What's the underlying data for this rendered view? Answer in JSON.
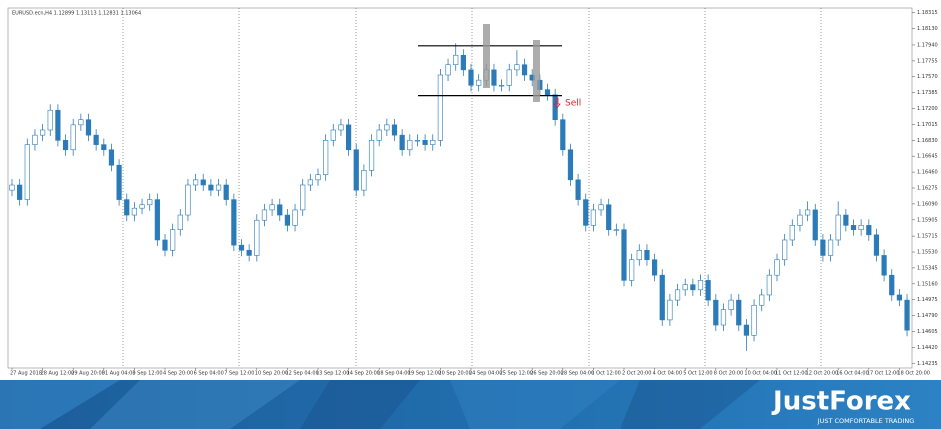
{
  "chart_data": {
    "type": "candlestick",
    "title": "EURUSD.ecn,H4  1.12899 1.13113 1.12831 1.13064",
    "annotation": "Sell",
    "brand": "JustForex",
    "tagline": "JUST COMFORTABLE TRADING",
    "up_color": "#ffffff",
    "down_color": "#2b7bb9",
    "wick_color": "#2b7bb9",
    "ylim": [
      1.1418,
      1.1837
    ],
    "yticks": [
      1.18315,
      {
        "value": 1.1813,
        "label": "1.18130"
      },
      {
        "value": 1.1794,
        "label": "1.17940"
      },
      1.17755,
      {
        "value": 1.1757,
        "label": "1.17570"
      },
      1.17385,
      {
        "value": 1.172,
        "label": "1.17200"
      },
      1.17015,
      {
        "value": 1.1683,
        "label": "1.16830"
      },
      1.16645,
      {
        "value": 1.1646,
        "label": "1.16460"
      },
      1.16275,
      {
        "value": 1.1609,
        "label": "1.16090"
      },
      1.15905,
      1.15715,
      {
        "value": 1.1553,
        "label": "1.15530"
      },
      1.15345,
      {
        "value": 1.1516,
        "label": "1.15160"
      },
      1.14975,
      {
        "value": 1.1479,
        "label": "1.14790"
      },
      1.14605,
      {
        "value": 1.1442,
        "label": "1.14420"
      },
      1.14235
    ],
    "levels": [
      1.1793,
      1.1735
    ],
    "categories": [
      "27 Aug 2018",
      null,
      null,
      null,
      "28 Aug 12:00",
      null,
      null,
      null,
      "29 Aug 20:00",
      null,
      null,
      null,
      "31 Aug 04:00",
      null,
      null,
      null,
      "3 Sep 12:00",
      null,
      null,
      null,
      "4 Sep 20:00",
      null,
      null,
      null,
      "6 Sep 04:00",
      null,
      null,
      null,
      "7 Sep 12:00",
      null,
      null,
      null,
      "10 Sep 20:00",
      null,
      null,
      null,
      "12 Sep 04:00",
      null,
      null,
      null,
      "13 Sep 12:00",
      null,
      null,
      null,
      "14 Sep 20:00",
      null,
      null,
      null,
      "18 Sep 04:00",
      null,
      null,
      null,
      "19 Sep 12:00",
      null,
      null,
      null,
      "20 Sep 20:00",
      null,
      null,
      null,
      "24 Sep 04:00",
      null,
      null,
      null,
      "25 Sep 12:00",
      null,
      null,
      null,
      "26 Sep 20:00",
      null,
      null,
      null,
      "28 Sep 04:00",
      null,
      null,
      null,
      "1 Oct 12:00",
      null,
      null,
      null,
      "2 Oct 20:00",
      null,
      null,
      null,
      "4 Oct 04:00",
      null,
      null,
      null,
      "5 Oct 12:00",
      null,
      null,
      null,
      "8 Oct 20:00",
      null,
      null,
      null,
      "10 Oct 04:00",
      null,
      null,
      null,
      "11 Oct 12:00",
      null,
      null,
      null,
      "12 Oct 20:00",
      null,
      null,
      null,
      "16 Oct 04:00",
      null,
      null,
      null,
      "17 Oct 12:00",
      null,
      null,
      null,
      "18 Oct 20:00",
      null
    ],
    "open": [
      1.1625,
      1.1631,
      1.1614,
      1.1678,
      1.1689,
      1.1695,
      1.1718,
      1.1683,
      1.1672,
      1.1701,
      1.1707,
      1.1689,
      1.1678,
      1.1672,
      1.1654,
      1.1614,
      1.1596,
      1.1604,
      1.1608,
      1.1614,
      1.1567,
      1.1555,
      1.1579,
      1.1596,
      1.1631,
      1.1637,
      1.1631,
      1.1625,
      1.1631,
      1.1614,
      1.1561,
      1.1555,
      1.1549,
      1.159,
      1.1602,
      1.1608,
      1.1596,
      1.1584,
      1.1602,
      1.1631,
      1.1637,
      1.1643,
      1.1683,
      1.1695,
      1.1701,
      1.1672,
      1.1625,
      1.1648,
      1.1683,
      1.1695,
      1.1701,
      1.1689,
      1.1672,
      1.1683,
      1.1683,
      1.1678,
      1.1683,
      1.1759,
      1.1771,
      1.1782,
      1.1765,
      1.1747,
      1.1753,
      1.1765,
      1.1747,
      1.1747,
      1.1765,
      1.1771,
      1.1759,
      1.1753,
      1.1742,
      1.1736,
      1.1707,
      1.1672,
      1.1637,
      1.1614,
      1.1584,
      1.1602,
      1.1608,
      1.1579,
      1.1579,
      1.152,
      1.1544,
      1.1555,
      1.1544,
      1.1526,
      1.1474,
      1.1497,
      1.1509,
      1.1515,
      1.1509,
      1.152,
      1.1497,
      1.1468,
      1.1486,
      1.1497,
      1.1468,
      1.1456,
      1.1491,
      1.1503,
      1.1526,
      1.1544,
      1.1567,
      1.1584,
      1.1596,
      1.1602,
      1.1567,
      1.1549,
      1.1567,
      1.1596,
      1.1584,
      1.1579,
      1.1584,
      1.1573,
      1.1549,
      1.1526,
      1.1503,
      1.1497
    ],
    "high": [
      1.1638,
      1.1638,
      1.1685,
      1.1696,
      1.1702,
      1.1725,
      1.1725,
      1.169,
      1.1708,
      1.1714,
      1.1714,
      1.1696,
      1.1685,
      1.1679,
      1.1661,
      1.1621,
      1.1611,
      1.1615,
      1.1621,
      1.1621,
      1.1574,
      1.1586,
      1.1603,
      1.1638,
      1.1644,
      1.1644,
      1.1638,
      1.1638,
      1.1638,
      1.1621,
      1.1568,
      1.1562,
      1.1597,
      1.1609,
      1.1615,
      1.1615,
      1.1603,
      1.1609,
      1.1638,
      1.1644,
      1.165,
      1.169,
      1.1702,
      1.1708,
      1.1708,
      1.1679,
      1.1655,
      1.169,
      1.1702,
      1.1708,
      1.1708,
      1.1696,
      1.169,
      1.169,
      1.169,
      1.169,
      1.1766,
      1.1778,
      1.1796,
      1.1789,
      1.1772,
      1.176,
      1.1772,
      1.1772,
      1.1754,
      1.1772,
      1.1788,
      1.1778,
      1.1766,
      1.176,
      1.1749,
      1.1743,
      1.1714,
      1.1679,
      1.1644,
      1.1621,
      1.1609,
      1.1615,
      1.1615,
      1.1586,
      1.1586,
      1.1551,
      1.1562,
      1.1562,
      1.1551,
      1.1533,
      1.1504,
      1.1516,
      1.1522,
      1.1522,
      1.1527,
      1.1527,
      1.1504,
      1.1493,
      1.1504,
      1.1504,
      1.1475,
      1.1498,
      1.151,
      1.1533,
      1.1551,
      1.1574,
      1.1591,
      1.1603,
      1.1612,
      1.1609,
      1.1574,
      1.1574,
      1.1612,
      1.1603,
      1.1591,
      1.1591,
      1.1591,
      1.158,
      1.1556,
      1.1533,
      1.151,
      1.1504
    ],
    "low": [
      1.1618,
      1.1607,
      1.1607,
      1.1671,
      1.1682,
      1.1688,
      1.1676,
      1.1665,
      1.1665,
      1.1694,
      1.1682,
      1.1671,
      1.1665,
      1.1647,
      1.1607,
      1.1589,
      1.1589,
      1.1597,
      1.1601,
      1.156,
      1.1548,
      1.1548,
      1.1572,
      1.1589,
      1.1624,
      1.1624,
      1.1618,
      1.1618,
      1.1607,
      1.1554,
      1.1548,
      1.1542,
      1.1542,
      1.1583,
      1.1595,
      1.1589,
      1.1577,
      1.1577,
      1.1595,
      1.1624,
      1.163,
      1.1636,
      1.1676,
      1.1688,
      1.1665,
      1.1618,
      1.1618,
      1.1641,
      1.1676,
      1.1688,
      1.1682,
      1.1665,
      1.1665,
      1.1676,
      1.1671,
      1.1671,
      1.1676,
      1.1752,
      1.1764,
      1.1758,
      1.174,
      1.174,
      1.1746,
      1.174,
      1.174,
      1.174,
      1.1758,
      1.1752,
      1.1746,
      1.1735,
      1.1729,
      1.17,
      1.1665,
      1.163,
      1.1607,
      1.1577,
      1.1577,
      1.1595,
      1.1572,
      1.1572,
      1.1513,
      1.1513,
      1.1537,
      1.1537,
      1.1519,
      1.1467,
      1.1467,
      1.149,
      1.1502,
      1.1502,
      1.1502,
      1.149,
      1.1461,
      1.1461,
      1.1479,
      1.1461,
      1.1438,
      1.1449,
      1.1484,
      1.1496,
      1.1519,
      1.1537,
      1.156,
      1.1577,
      1.1589,
      1.156,
      1.1542,
      1.1542,
      1.156,
      1.1577,
      1.1572,
      1.1572,
      1.1566,
      1.1542,
      1.1519,
      1.1496,
      1.149,
      1.1455
    ],
    "close": [
      1.1631,
      1.1614,
      1.1678,
      1.1689,
      1.1695,
      1.1718,
      1.1683,
      1.1672,
      1.1701,
      1.1707,
      1.1689,
      1.1678,
      1.1672,
      1.1654,
      1.1614,
      1.1596,
      1.1604,
      1.1608,
      1.1614,
      1.1567,
      1.1555,
      1.1579,
      1.1596,
      1.1631,
      1.1637,
      1.1631,
      1.1625,
      1.1631,
      1.1614,
      1.1561,
      1.1555,
      1.1549,
      1.159,
      1.1602,
      1.1608,
      1.1596,
      1.1584,
      1.1602,
      1.1631,
      1.1637,
      1.1643,
      1.1683,
      1.1695,
      1.1701,
      1.1672,
      1.1625,
      1.1648,
      1.1683,
      1.1695,
      1.1701,
      1.1689,
      1.1672,
      1.1683,
      1.1683,
      1.1678,
      1.1683,
      1.1759,
      1.1771,
      1.1782,
      1.1765,
      1.1747,
      1.1753,
      1.1765,
      1.1747,
      1.1747,
      1.1765,
      1.1771,
      1.1759,
      1.1753,
      1.1742,
      1.1736,
      1.1707,
      1.1672,
      1.1637,
      1.1614,
      1.1584,
      1.1602,
      1.1608,
      1.1579,
      1.1579,
      1.152,
      1.1544,
      1.1555,
      1.1544,
      1.1526,
      1.1474,
      1.1497,
      1.1509,
      1.1515,
      1.1509,
      1.152,
      1.1497,
      1.1468,
      1.1486,
      1.1497,
      1.1468,
      1.1456,
      1.1491,
      1.1503,
      1.1526,
      1.1544,
      1.1567,
      1.1584,
      1.1596,
      1.1602,
      1.1567,
      1.1549,
      1.1567,
      1.1596,
      1.1584,
      1.1579,
      1.1584,
      1.1573,
      1.1549,
      1.1526,
      1.1503,
      1.1497,
      1.1462
    ]
  }
}
